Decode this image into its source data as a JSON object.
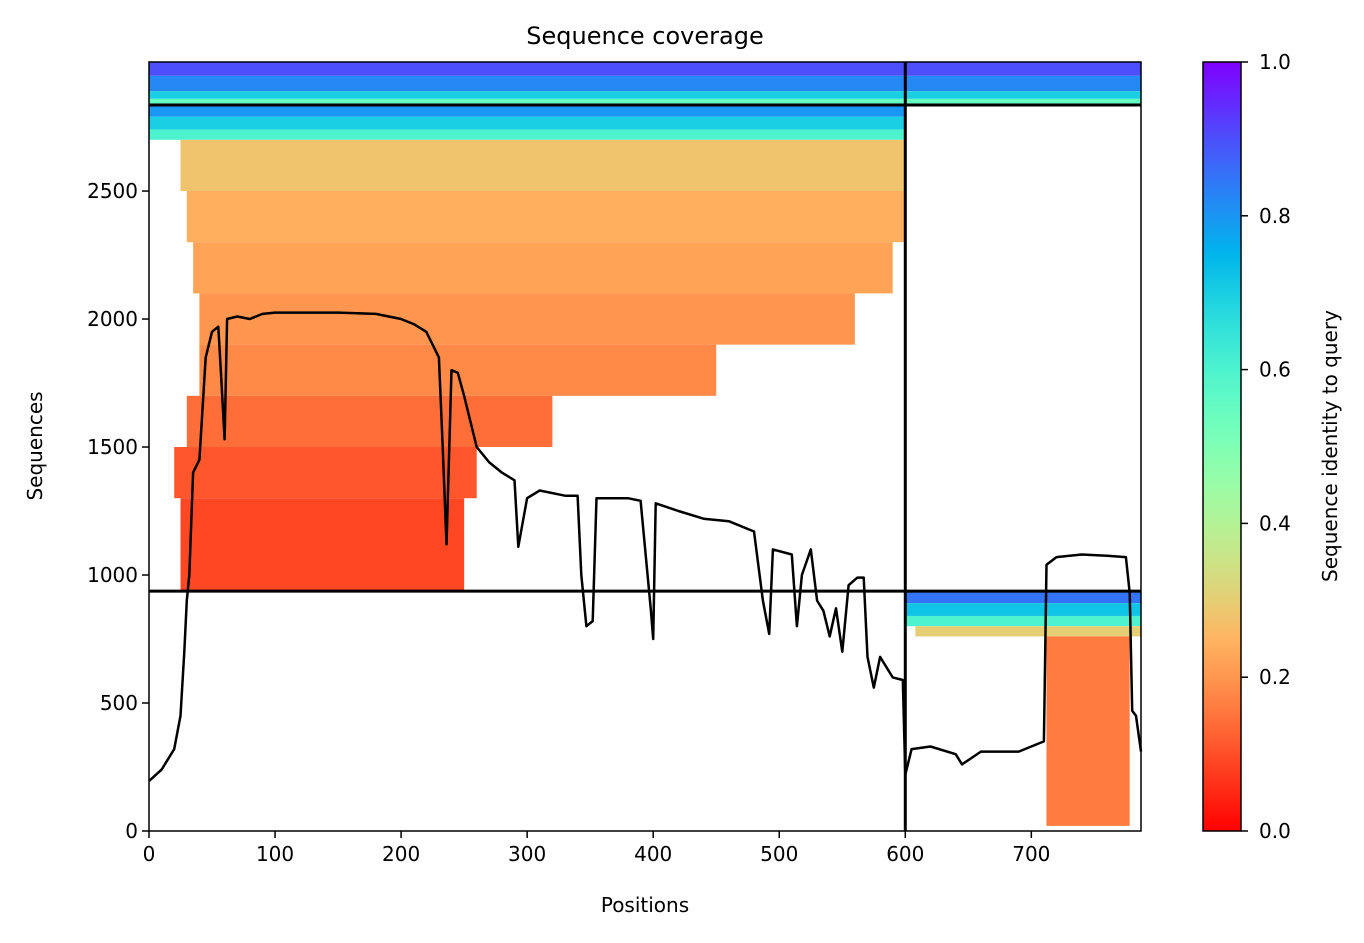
{
  "chart_data": {
    "type": "coverage",
    "title": "Sequence coverage",
    "xlabel": "Positions",
    "ylabel": "Sequences",
    "xlim": [
      0,
      787
    ],
    "ylim": [
      0,
      3004
    ],
    "xticks": [
      0,
      100,
      200,
      300,
      400,
      500,
      600,
      700
    ],
    "yticks": [
      0,
      500,
      1000,
      1500,
      2000,
      2500
    ],
    "colormap": "rainbow_r",
    "colorbar": {
      "label": "Sequence identity to query",
      "lim": [
        0,
        1
      ],
      "ticks": [
        {
          "value": 0,
          "label": "0.0"
        },
        0.2,
        0.4,
        0.6,
        0.8,
        {
          "value": 1,
          "label": "1.0"
        }
      ]
    },
    "chain_boundaries": {
      "x": [
        600
      ],
      "y": [
        937,
        2836
      ]
    },
    "blocks": [
      {
        "x": [
          0,
          787
        ],
        "y": [
          2950,
          3004
        ],
        "identity": 0.9
      },
      {
        "x": [
          0,
          787
        ],
        "y": [
          2890,
          2950
        ],
        "identity": 0.82
      },
      {
        "x": [
          0,
          787
        ],
        "y": [
          2860,
          2890
        ],
        "identity": 0.7
      },
      {
        "x": [
          0,
          787
        ],
        "y": [
          2836,
          2860
        ],
        "identity": 0.55
      },
      {
        "x": [
          0,
          600
        ],
        "y": [
          2790,
          2836
        ],
        "identity": 0.8
      },
      {
        "x": [
          0,
          600
        ],
        "y": [
          2740,
          2790
        ],
        "identity": 0.7
      },
      {
        "x": [
          0,
          600
        ],
        "y": [
          2700,
          2740
        ],
        "identity": 0.6
      },
      {
        "x": [
          25,
          600
        ],
        "y": [
          2500,
          2700
        ],
        "identity": 0.28
      },
      {
        "x": [
          30,
          600
        ],
        "y": [
          2300,
          2500
        ],
        "identity": 0.24
      },
      {
        "x": [
          35,
          590
        ],
        "y": [
          2100,
          2300
        ],
        "identity": 0.22
      },
      {
        "x": [
          40,
          560
        ],
        "y": [
          1900,
          2100
        ],
        "identity": 0.2
      },
      {
        "x": [
          40,
          450
        ],
        "y": [
          1700,
          1900
        ],
        "identity": 0.18
      },
      {
        "x": [
          30,
          320
        ],
        "y": [
          1500,
          1700
        ],
        "identity": 0.14
      },
      {
        "x": [
          20,
          260
        ],
        "y": [
          1300,
          1500
        ],
        "identity": 0.11
      },
      {
        "x": [
          25,
          250
        ],
        "y": [
          937,
          1300
        ],
        "identity": 0.09
      },
      {
        "x": [
          600,
          787
        ],
        "y": [
          890,
          937
        ],
        "identity": 0.85
      },
      {
        "x": [
          600,
          787
        ],
        "y": [
          840,
          890
        ],
        "identity": 0.72
      },
      {
        "x": [
          600,
          787
        ],
        "y": [
          800,
          840
        ],
        "identity": 0.6
      },
      {
        "x": [
          608,
          787
        ],
        "y": [
          760,
          800
        ],
        "identity": 0.3
      },
      {
        "x": [
          712,
          778
        ],
        "y": [
          20,
          760
        ],
        "identity": 0.16
      }
    ],
    "coverage": {
      "color": "#000000",
      "x": [
        0,
        10,
        20,
        25,
        28,
        30,
        32,
        35,
        40,
        45,
        50,
        55,
        57,
        60,
        62,
        70,
        80,
        90,
        100,
        150,
        180,
        200,
        210,
        220,
        230,
        233,
        236,
        240,
        245,
        250,
        260,
        270,
        280,
        290,
        293,
        300,
        310,
        330,
        340,
        343,
        347,
        352,
        355,
        380,
        390,
        398,
        400,
        402,
        420,
        440,
        460,
        480,
        487,
        492,
        495,
        510,
        514,
        518,
        525,
        530,
        535,
        540,
        545,
        550,
        555,
        562,
        567,
        570,
        575,
        580,
        590,
        598,
        600,
        605,
        620,
        640,
        645,
        660,
        690,
        710,
        712,
        720,
        740,
        760,
        775,
        778,
        780,
        783,
        787
      ],
      "values": [
        195,
        240,
        320,
        450,
        700,
        900,
        1000,
        1400,
        1450,
        1850,
        1950,
        1970,
        1800,
        1530,
        2000,
        2010,
        2000,
        2020,
        2025,
        2025,
        2020,
        2000,
        1980,
        1950,
        1850,
        1500,
        1120,
        1800,
        1790,
        1700,
        1500,
        1440,
        1400,
        1370,
        1110,
        1300,
        1330,
        1310,
        1310,
        1000,
        800,
        820,
        1300,
        1300,
        1290,
        870,
        750,
        1280,
        1250,
        1220,
        1210,
        1170,
        900,
        770,
        1100,
        1080,
        800,
        1000,
        1100,
        900,
        860,
        760,
        870,
        700,
        960,
        990,
        990,
        680,
        560,
        680,
        600,
        590,
        220,
        320,
        330,
        300,
        260,
        310,
        310,
        350,
        1040,
        1070,
        1080,
        1075,
        1070,
        930,
        470,
        450,
        310
      ]
    }
  }
}
